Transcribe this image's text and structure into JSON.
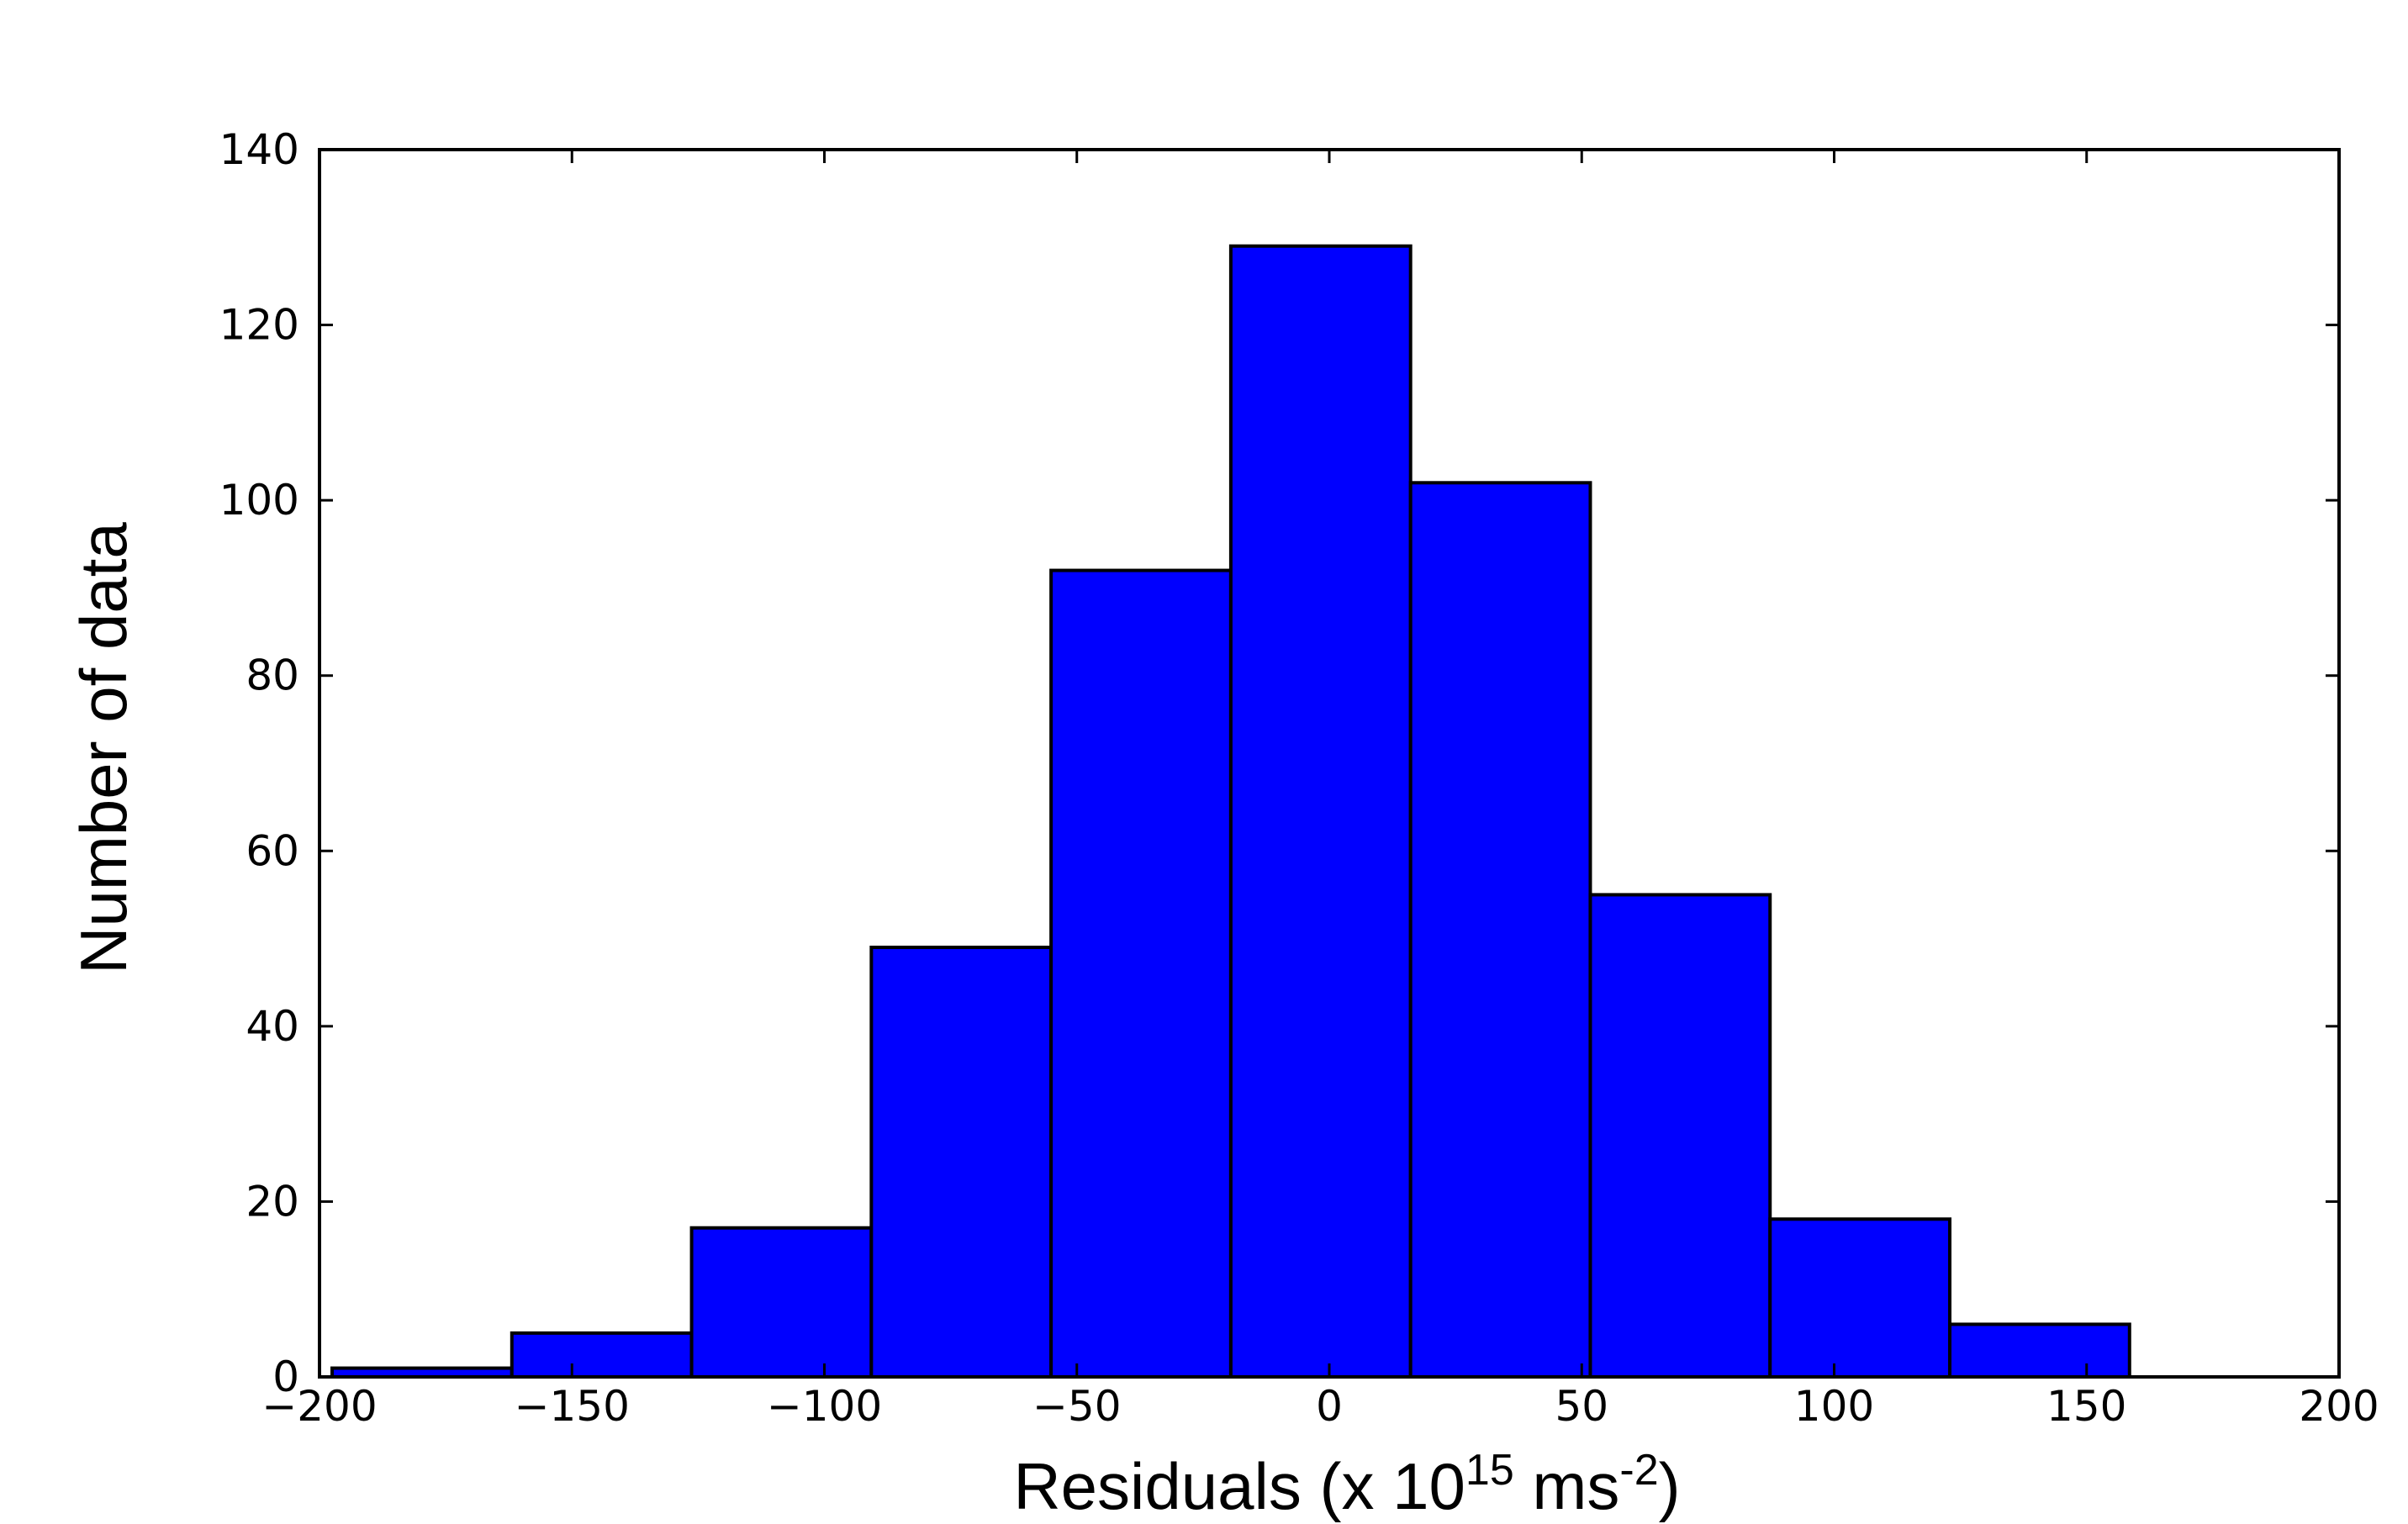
{
  "chart_data": {
    "type": "bar",
    "subtype": "histogram",
    "title": "",
    "xlabel": {
      "prefix": "Residuals (x 10",
      "sup1": "15",
      "middle": " ms",
      "sup2": "-2",
      "suffix": ")"
    },
    "ylabel": "Number of data",
    "xlim": [
      -200,
      200
    ],
    "ylim": [
      0,
      140
    ],
    "xticks": [
      -200,
      -150,
      -100,
      -50,
      0,
      50,
      100,
      150,
      200
    ],
    "xtick_labels": [
      "−200",
      "−150",
      "−100",
      "−50",
      "0",
      "50",
      "100",
      "150",
      "200"
    ],
    "yticks": [
      0,
      20,
      40,
      60,
      80,
      100,
      120,
      140
    ],
    "ytick_labels": [
      "0",
      "20",
      "40",
      "60",
      "80",
      "100",
      "120",
      "140"
    ],
    "bin_edges": [
      -197.5,
      -161.9,
      -126.3,
      -90.7,
      -55.1,
      -19.5,
      16.1,
      51.7,
      87.3,
      122.9,
      158.5
    ],
    "values": [
      1,
      5,
      17,
      49,
      92,
      129,
      102,
      55,
      18,
      6
    ],
    "grid": false,
    "legend": "none",
    "colors": {
      "bar_fill": "#0000ff",
      "bar_edge": "#000000",
      "axis": "#000000",
      "background": "#ffffff"
    }
  }
}
